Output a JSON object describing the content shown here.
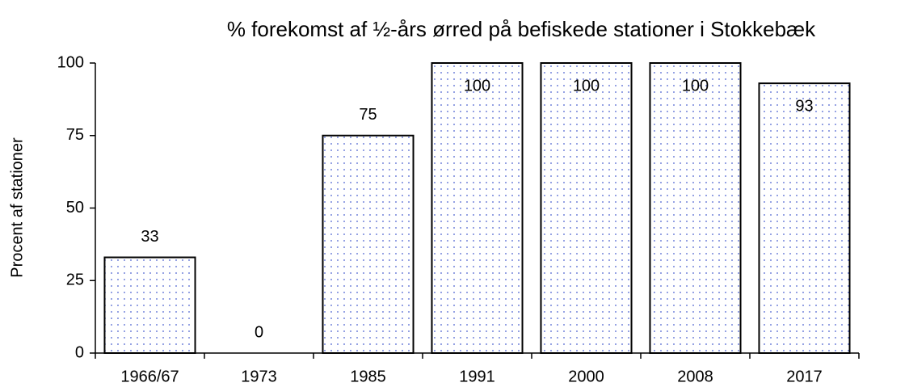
{
  "chart_data": {
    "type": "bar",
    "title": "% forekomst af ½-års ørred på befiskede stationer i Stokkebæk",
    "y_label": "Procent af stationer",
    "categories": [
      "1966/67",
      "1973",
      "1985",
      "1991",
      "2000",
      "2008",
      "2017"
    ],
    "values": [
      33,
      0,
      75,
      100,
      100,
      100,
      93
    ],
    "color": "#4a5fd0",
    "ylim": [
      0,
      100
    ],
    "yticks": [
      0,
      25,
      50,
      75,
      100
    ],
    "grid": false
  }
}
